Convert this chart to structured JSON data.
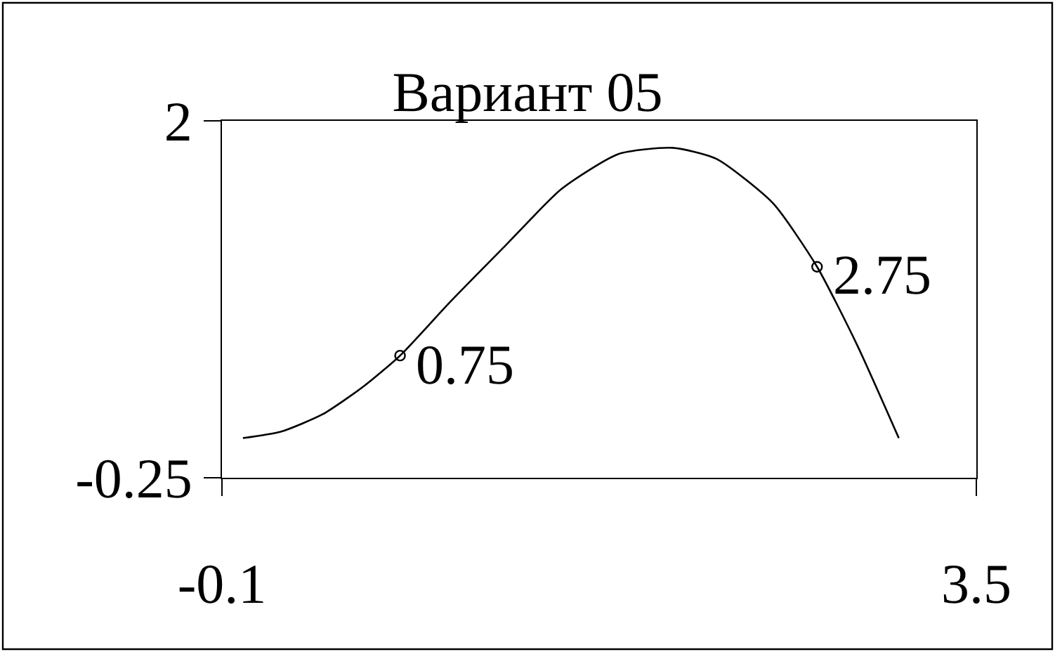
{
  "chart_data": {
    "type": "line",
    "title": "Вариант 05",
    "series": [
      {
        "color": "#000000",
        "x": [
          0,
          0.18,
          0.38,
          0.58,
          0.75,
          0.99,
          1.25,
          1.52,
          1.79,
          2.05,
          2.26,
          2.53,
          2.74,
          2.93,
          3.13
        ],
        "values": [
          0,
          0.04,
          0.15,
          0.33,
          0.52,
          0.86,
          1.21,
          1.57,
          1.79,
          1.83,
          1.76,
          1.48,
          1.08,
          0.59,
          0
        ]
      },
      {
        "type": "scatter",
        "marker": "circle",
        "color": "#000000",
        "x": [
          0.75,
          2.74
        ],
        "values": [
          0.52,
          1.08
        ]
      }
    ],
    "annotations": [
      {
        "text": "0.75",
        "x": 0.75,
        "y": 0.52
      },
      {
        "text": "2.75",
        "x": 2.74,
        "y": 1.08
      }
    ],
    "xlim": [
      -0.1,
      3.5
    ],
    "ylim": [
      -0.25,
      2
    ],
    "xticks": [
      -0.1,
      3.5
    ],
    "yticks": [
      -0.25,
      2
    ]
  }
}
